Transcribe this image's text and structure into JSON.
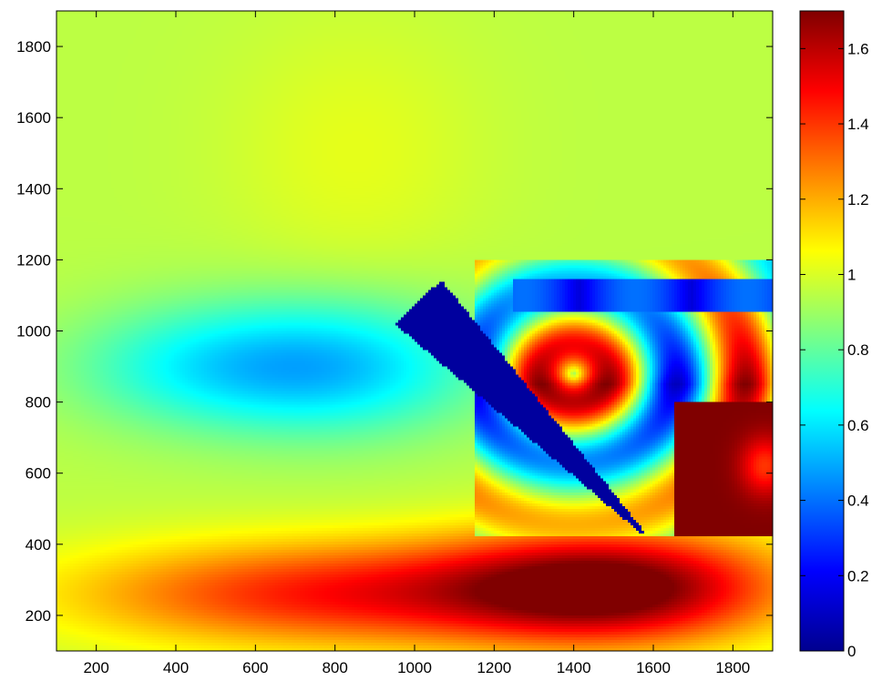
{
  "chart_data": {
    "type": "heatmap",
    "title": "",
    "xlabel": "",
    "ylabel": "",
    "colormap": "jet",
    "xlim": [
      100,
      1900
    ],
    "ylim": [
      100,
      1900
    ],
    "xticks": [
      200,
      400,
      600,
      800,
      1000,
      1200,
      1400,
      1600,
      1800
    ],
    "yticks": [
      200,
      400,
      600,
      800,
      1000,
      1200,
      1400,
      1600,
      1800
    ],
    "colorbar": {
      "range": [
        0,
        1.7
      ],
      "ticks": [
        0,
        0.2,
        0.4,
        0.6,
        0.8,
        1,
        1.2,
        1.4,
        1.6
      ]
    },
    "grid": false
  }
}
